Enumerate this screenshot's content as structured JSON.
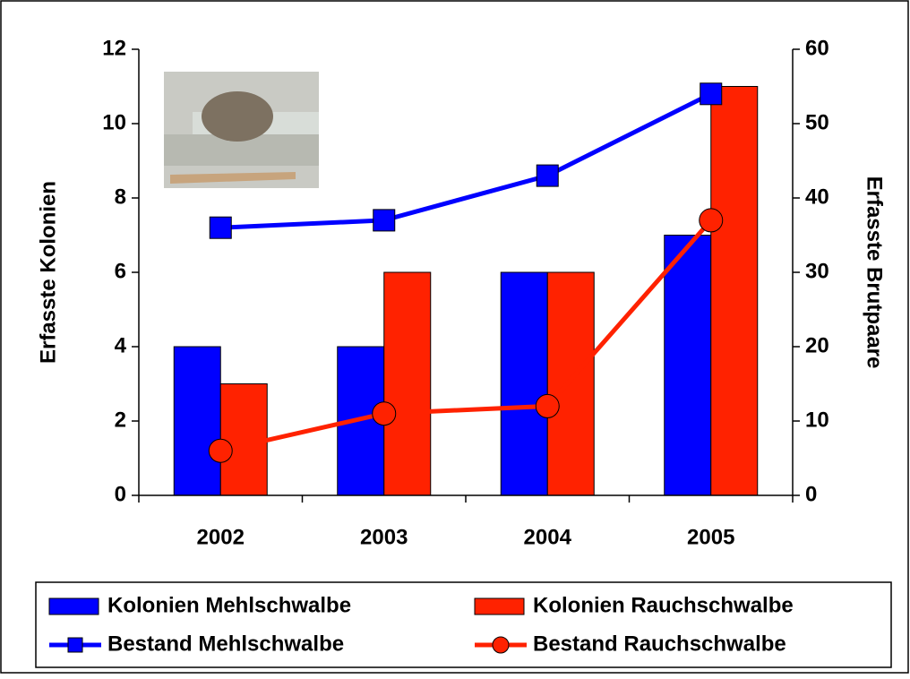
{
  "chart_data": {
    "type": "bar-line",
    "categories": [
      "2002",
      "2003",
      "2004",
      "2005"
    ],
    "y_label": "Erfasste Kolonien",
    "y2_label": "Erfasste Brutpaare",
    "ylim": [
      0,
      12
    ],
    "yticks": [
      0,
      2,
      4,
      6,
      8,
      10,
      12
    ],
    "y2lim": [
      0,
      60
    ],
    "y2ticks": [
      0,
      10,
      20,
      30,
      40,
      50,
      60
    ],
    "series": [
      {
        "name": "Kolonien Mehlschwalbe",
        "kind": "bar",
        "color": "#0000ff",
        "values": [
          4,
          4,
          6,
          7
        ]
      },
      {
        "name": "Kolonien Rauchschwalbe",
        "kind": "bar",
        "color": "#ff2200",
        "values": [
          3,
          6,
          6,
          11
        ]
      },
      {
        "name": "Bestand Mehlschwalbe",
        "kind": "line",
        "marker": "square",
        "axis": "y2",
        "color": "#0000ff",
        "values": [
          36,
          37,
          43,
          54
        ]
      },
      {
        "name": "Bestand Rauchschwalbe",
        "kind": "line",
        "marker": "circle",
        "axis": "y2",
        "color": "#ff2200",
        "values": [
          6,
          11,
          12,
          37
        ]
      }
    ]
  }
}
